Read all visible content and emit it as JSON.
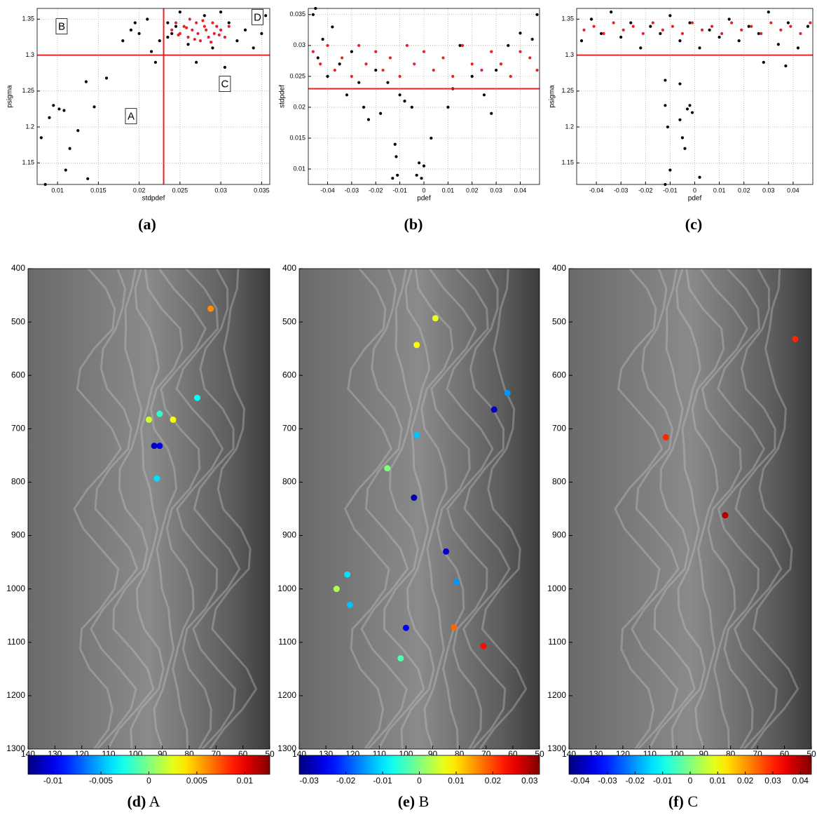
{
  "chart_data": [
    {
      "type": "scatter",
      "caption": "(a)",
      "xlabel": "stdpdef",
      "ylabel": "psigma",
      "xlim": [
        0.0075,
        0.036
      ],
      "ylim": [
        1.12,
        1.365
      ],
      "xticks": [
        0.01,
        0.015,
        0.02,
        0.025,
        0.03,
        0.035
      ],
      "yticks": [
        1.15,
        1.2,
        1.25,
        1.3,
        1.35
      ],
      "grid": true,
      "hlines": [
        1.3
      ],
      "vlines": [
        0.023
      ],
      "line_color": "#e8202a",
      "annotations": [
        {
          "text": "A",
          "x": 0.019,
          "y": 1.215
        },
        {
          "text": "B",
          "x": 0.0105,
          "y": 1.34
        },
        {
          "text": "C",
          "x": 0.0305,
          "y": 1.26
        },
        {
          "text": "D",
          "x": 0.0345,
          "y": 1.353
        }
      ],
      "series": [
        {
          "color": "#000000",
          "x": [
            0.008,
            0.0085,
            0.009,
            0.0095,
            0.0102,
            0.0108,
            0.0115,
            0.011,
            0.0125,
            0.0135,
            0.0137,
            0.0145,
            0.016,
            0.018,
            0.019,
            0.0195,
            0.02,
            0.021,
            0.0215,
            0.022,
            0.0225,
            0.0235,
            0.024,
            0.025,
            0.026,
            0.027,
            0.028,
            0.029,
            0.0305,
            0.031,
            0.032,
            0.033,
            0.034,
            0.035,
            0.0355,
            0.0235,
            0.0245,
            0.03
          ],
          "y": [
            1.185,
            1.12,
            1.213,
            1.23,
            1.225,
            1.223,
            1.17,
            1.14,
            1.195,
            1.263,
            1.128,
            1.228,
            1.268,
            1.32,
            1.335,
            1.345,
            1.33,
            1.35,
            1.305,
            1.29,
            1.32,
            1.345,
            1.33,
            1.36,
            1.315,
            1.29,
            1.355,
            1.31,
            1.283,
            1.345,
            1.32,
            1.335,
            1.31,
            1.33,
            1.355,
            1.325,
            1.34,
            1.36
          ]
        },
        {
          "color": "#e8202a",
          "x": [
            0.024,
            0.0245,
            0.025,
            0.0255,
            0.026,
            0.0265,
            0.027,
            0.0272,
            0.0275,
            0.028,
            0.0282,
            0.0285,
            0.029,
            0.0292,
            0.0295,
            0.03,
            0.0305,
            0.031,
            0.0262,
            0.0278,
            0.0288,
            0.0268,
            0.0298,
            0.0248,
            0.0258
          ],
          "y": [
            1.335,
            1.345,
            1.33,
            1.34,
            1.325,
            1.335,
            1.345,
            1.33,
            1.32,
            1.34,
            1.335,
            1.325,
            1.345,
            1.33,
            1.34,
            1.335,
            1.325,
            1.34,
            1.35,
            1.348,
            1.318,
            1.322,
            1.328,
            1.328,
            1.338
          ]
        }
      ]
    },
    {
      "type": "scatter",
      "caption": "(b)",
      "xlabel": "pdef",
      "ylabel": "stdpdef",
      "xlim": [
        -0.048,
        0.048
      ],
      "ylim": [
        0.0075,
        0.036
      ],
      "xticks": [
        -0.04,
        -0.03,
        -0.02,
        -0.01,
        0,
        0.01,
        0.02,
        0.03,
        0.04
      ],
      "yticks": [
        0.01,
        0.015,
        0.02,
        0.025,
        0.03,
        0.035
      ],
      "grid": true,
      "hlines": [
        0.023
      ],
      "line_color": "#e8202a",
      "series": [
        {
          "color": "#000000",
          "x": [
            -0.046,
            -0.044,
            -0.042,
            -0.04,
            -0.038,
            -0.035,
            -0.032,
            -0.03,
            -0.027,
            -0.025,
            -0.023,
            -0.02,
            -0.018,
            -0.015,
            -0.012,
            -0.0115,
            -0.011,
            -0.01,
            -0.008,
            -0.005,
            -0.003,
            -0.002,
            0,
            0.003,
            0.01,
            0.012,
            0.015,
            0.02,
            0.025,
            0.028,
            0.03,
            0.035,
            0.04,
            0.045,
            0.047,
            -0.045,
            -0.013,
            -0.001
          ],
          "y": [
            0.035,
            0.028,
            0.031,
            0.025,
            0.033,
            0.027,
            0.022,
            0.029,
            0.024,
            0.02,
            0.018,
            0.026,
            0.019,
            0.024,
            0.014,
            0.012,
            0.009,
            0.022,
            0.021,
            0.02,
            0.009,
            0.011,
            0.0105,
            0.015,
            0.02,
            0.023,
            0.03,
            0.025,
            0.022,
            0.019,
            0.026,
            0.03,
            0.032,
            0.031,
            0.035,
            0.036,
            0.0085,
            0.0085
          ]
        },
        {
          "color": "#e8202a",
          "x": [
            -0.046,
            -0.043,
            -0.04,
            -0.037,
            -0.034,
            -0.03,
            -0.027,
            -0.024,
            -0.02,
            -0.017,
            -0.014,
            -0.01,
            -0.007,
            -0.004,
            0,
            0.004,
            0.008,
            0.012,
            0.016,
            0.02,
            0.024,
            0.028,
            0.032,
            0.036,
            0.04,
            0.044,
            0.047
          ],
          "y": [
            0.029,
            0.027,
            0.03,
            0.026,
            0.028,
            0.025,
            0.03,
            0.027,
            0.029,
            0.026,
            0.028,
            0.025,
            0.03,
            0.027,
            0.029,
            0.026,
            0.028,
            0.025,
            0.03,
            0.027,
            0.026,
            0.029,
            0.027,
            0.025,
            0.029,
            0.028,
            0.026
          ]
        }
      ]
    },
    {
      "type": "scatter",
      "caption": "(c)",
      "xlabel": "pdef",
      "ylabel": "psigma",
      "xlim": [
        -0.048,
        0.048
      ],
      "ylim": [
        1.12,
        1.365
      ],
      "xticks": [
        -0.04,
        -0.03,
        -0.02,
        -0.01,
        0,
        0.01,
        0.02,
        0.03,
        0.04
      ],
      "yticks": [
        1.15,
        1.2,
        1.25,
        1.3,
        1.35
      ],
      "grid": true,
      "hlines": [
        1.3
      ],
      "line_color": "#e8202a",
      "series": [
        {
          "color": "#000000",
          "x": [
            -0.012,
            -0.012,
            -0.011,
            -0.01,
            -0.012,
            -0.006,
            -0.005,
            -0.004,
            -0.003,
            -0.002,
            -0.001,
            0.002,
            -0.006,
            0.028,
            0.037,
            -0.046,
            -0.042,
            -0.038,
            -0.034,
            -0.03,
            -0.026,
            -0.022,
            -0.018,
            -0.014,
            -0.01,
            -0.006,
            -0.002,
            0.002,
            0.006,
            0.01,
            0.014,
            0.018,
            0.022,
            0.026,
            0.03,
            0.034,
            0.038,
            0.042,
            0.046
          ],
          "y": [
            1.265,
            1.23,
            1.2,
            1.14,
            1.12,
            1.21,
            1.185,
            1.17,
            1.225,
            1.23,
            1.22,
            1.13,
            1.26,
            1.29,
            1.285,
            1.32,
            1.35,
            1.33,
            1.36,
            1.325,
            1.345,
            1.31,
            1.34,
            1.33,
            1.355,
            1.32,
            1.345,
            1.31,
            1.335,
            1.325,
            1.35,
            1.32,
            1.34,
            1.33,
            1.36,
            1.315,
            1.345,
            1.31,
            1.34
          ]
        },
        {
          "color": "#e8202a",
          "x": [
            -0.045,
            -0.041,
            -0.037,
            -0.033,
            -0.029,
            -0.025,
            -0.021,
            -0.017,
            -0.013,
            -0.009,
            -0.005,
            -0.001,
            0.003,
            0.007,
            0.011,
            0.015,
            0.019,
            0.023,
            0.027,
            0.031,
            0.035,
            0.039,
            0.043,
            0.047
          ],
          "y": [
            1.335,
            1.34,
            1.33,
            1.345,
            1.335,
            1.34,
            1.33,
            1.345,
            1.335,
            1.34,
            1.33,
            1.345,
            1.335,
            1.34,
            1.33,
            1.345,
            1.335,
            1.34,
            1.33,
            1.345,
            1.335,
            1.34,
            1.33,
            1.345
          ]
        }
      ]
    },
    {
      "type": "map_scatter",
      "caption": "(d)",
      "caption_text": "A",
      "colormap": "jet",
      "xlim": [
        140,
        50
      ],
      "ylim": [
        1300,
        400
      ],
      "xticks": [
        140,
        130,
        120,
        110,
        100,
        90,
        80,
        70,
        60,
        50
      ],
      "yticks": [
        400,
        500,
        600,
        700,
        800,
        900,
        1000,
        1100,
        1200,
        1300
      ],
      "clim": [
        -0.0126,
        0.0126
      ],
      "cticks": [
        -0.01,
        -0.005,
        0,
        0.005,
        0.01
      ],
      "x": [
        72,
        77,
        95,
        91,
        86,
        93,
        91,
        92
      ],
      "y": [
        475,
        642,
        683,
        672,
        683,
        732,
        732,
        793
      ],
      "values": [
        0.006,
        -0.003,
        0.002,
        -0.002,
        0.003,
        -0.011,
        -0.01,
        -0.004
      ]
    },
    {
      "type": "map_scatter",
      "caption": "(e)",
      "caption_text": "B",
      "colormap": "jet",
      "xlim": [
        140,
        50
      ],
      "ylim": [
        1300,
        400
      ],
      "xticks": [
        140,
        130,
        120,
        110,
        100,
        90,
        80,
        70,
        60,
        50
      ],
      "yticks": [
        400,
        500,
        600,
        700,
        800,
        900,
        1000,
        1100,
        1200,
        1300
      ],
      "clim": [
        -0.0327,
        0.0327
      ],
      "cticks": [
        -0.03,
        -0.02,
        -0.01,
        0,
        0.01,
        0.02,
        0.03
      ],
      "x": [
        89,
        96,
        62,
        67,
        96,
        107,
        97,
        85,
        81,
        122,
        126,
        121,
        100,
        82,
        71,
        102
      ],
      "y": [
        493,
        543,
        633,
        664,
        712,
        774,
        829,
        930,
        987,
        973,
        1000,
        1030,
        1073,
        1072,
        1107,
        1130
      ],
      "values": [
        0.007,
        0.008,
        -0.015,
        -0.028,
        -0.012,
        0.0,
        -0.03,
        -0.028,
        -0.015,
        -0.01,
        0.003,
        -0.012,
        -0.025,
        0.018,
        0.024,
        -0.003
      ]
    },
    {
      "type": "map_scatter",
      "caption": "(f)",
      "caption_text": "C",
      "colormap": "jet",
      "xlim": [
        140,
        50
      ],
      "ylim": [
        1300,
        400
      ],
      "xticks": [
        140,
        130,
        120,
        110,
        100,
        90,
        80,
        70,
        60,
        50
      ],
      "yticks": [
        400,
        500,
        600,
        700,
        800,
        900,
        1000,
        1100,
        1200,
        1300
      ],
      "clim": [
        -0.044,
        0.044
      ],
      "cticks": [
        -0.04,
        -0.03,
        -0.02,
        -0.01,
        0,
        0.01,
        0.02,
        0.03,
        0.04
      ],
      "x": [
        56,
        104,
        82
      ],
      "y": [
        532,
        716,
        862
      ],
      "values": [
        0.03,
        0.03,
        0.04
      ]
    }
  ]
}
